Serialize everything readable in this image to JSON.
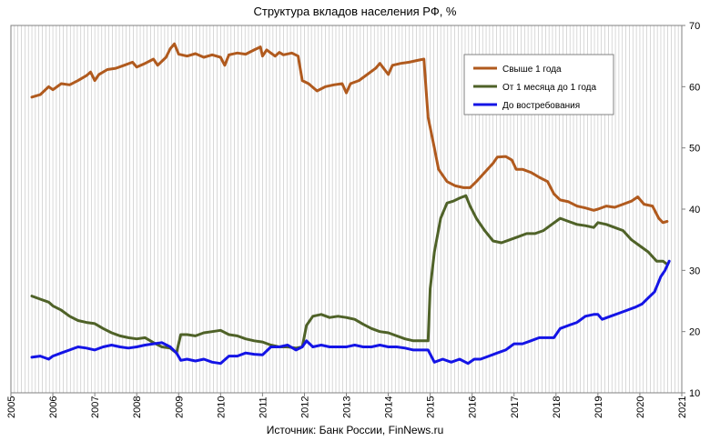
{
  "chart_data": {
    "type": "line",
    "title": "Структура вкладов населения РФ, %",
    "source": "Источник: Банк России, FinNews.ru",
    "xlabel": "",
    "ylabel": "",
    "xlim": [
      2005,
      2021
    ],
    "ylim": [
      10,
      70
    ],
    "y_axis_side": "right",
    "x_ticks": [
      "2005",
      "2006",
      "2007",
      "2008",
      "2009",
      "2010",
      "2011",
      "2012",
      "2013",
      "2014",
      "2015",
      "2016",
      "2017",
      "2018",
      "2019",
      "2020",
      "2021"
    ],
    "y_ticks": [
      "10",
      "20",
      "30",
      "40",
      "50",
      "60",
      "70"
    ],
    "grid": "vertical-monthly",
    "legend_position": "top-right",
    "colors": {
      "over_1_year": "#b05a1e",
      "1_month_to_1_year": "#4f6228",
      "on_demand": "#1414e6",
      "grid": "#bfbfbf",
      "axis": "#808080"
    },
    "series": [
      {
        "key": "over_1_year",
        "name": "Свыше 1 года",
        "color": "#b05a1e",
        "points": [
          [
            2005.5,
            58.3
          ],
          [
            2005.7,
            58.7
          ],
          [
            2005.9,
            60.0
          ],
          [
            2006.0,
            59.5
          ],
          [
            2006.2,
            60.5
          ],
          [
            2006.4,
            60.3
          ],
          [
            2006.6,
            61.0
          ],
          [
            2006.8,
            61.8
          ],
          [
            2006.9,
            62.4
          ],
          [
            2007.0,
            61.0
          ],
          [
            2007.1,
            62.0
          ],
          [
            2007.3,
            62.8
          ],
          [
            2007.5,
            63.0
          ],
          [
            2007.7,
            63.5
          ],
          [
            2007.9,
            64.0
          ],
          [
            2008.0,
            63.2
          ],
          [
            2008.2,
            63.8
          ],
          [
            2008.4,
            64.5
          ],
          [
            2008.5,
            63.5
          ],
          [
            2008.7,
            64.8
          ],
          [
            2008.8,
            66.2
          ],
          [
            2008.9,
            67.0
          ],
          [
            2009.0,
            65.3
          ],
          [
            2009.2,
            65.0
          ],
          [
            2009.4,
            65.4
          ],
          [
            2009.6,
            64.8
          ],
          [
            2009.8,
            65.2
          ],
          [
            2010.0,
            64.8
          ],
          [
            2010.1,
            63.5
          ],
          [
            2010.2,
            65.2
          ],
          [
            2010.4,
            65.5
          ],
          [
            2010.6,
            65.3
          ],
          [
            2010.8,
            66.0
          ],
          [
            2010.95,
            66.5
          ],
          [
            2011.0,
            65.0
          ],
          [
            2011.1,
            66.0
          ],
          [
            2011.2,
            65.5
          ],
          [
            2011.3,
            65.0
          ],
          [
            2011.4,
            65.6
          ],
          [
            2011.5,
            65.2
          ],
          [
            2011.7,
            65.5
          ],
          [
            2011.85,
            65.0
          ],
          [
            2011.95,
            61.0
          ],
          [
            2012.1,
            60.5
          ],
          [
            2012.3,
            59.3
          ],
          [
            2012.5,
            60.0
          ],
          [
            2012.7,
            60.3
          ],
          [
            2012.9,
            60.5
          ],
          [
            2013.0,
            59.0
          ],
          [
            2013.1,
            60.5
          ],
          [
            2013.3,
            61.0
          ],
          [
            2013.5,
            62.0
          ],
          [
            2013.7,
            63.0
          ],
          [
            2013.8,
            63.8
          ],
          [
            2014.0,
            62.0
          ],
          [
            2014.1,
            63.5
          ],
          [
            2014.3,
            63.8
          ],
          [
            2014.5,
            64.0
          ],
          [
            2014.7,
            64.3
          ],
          [
            2014.85,
            64.5
          ],
          [
            2014.95,
            55.0
          ],
          [
            2015.1,
            50.0
          ],
          [
            2015.2,
            46.5
          ],
          [
            2015.4,
            44.5
          ],
          [
            2015.6,
            43.8
          ],
          [
            2015.8,
            43.5
          ],
          [
            2015.95,
            43.5
          ],
          [
            2016.1,
            44.5
          ],
          [
            2016.3,
            46.0
          ],
          [
            2016.5,
            47.5
          ],
          [
            2016.6,
            48.5
          ],
          [
            2016.8,
            48.6
          ],
          [
            2016.95,
            48.0
          ],
          [
            2017.05,
            46.5
          ],
          [
            2017.2,
            46.5
          ],
          [
            2017.4,
            46.0
          ],
          [
            2017.6,
            45.2
          ],
          [
            2017.8,
            44.5
          ],
          [
            2017.95,
            42.5
          ],
          [
            2018.1,
            41.5
          ],
          [
            2018.3,
            41.2
          ],
          [
            2018.5,
            40.5
          ],
          [
            2018.7,
            40.2
          ],
          [
            2018.9,
            39.8
          ],
          [
            2019.0,
            40.0
          ],
          [
            2019.2,
            40.5
          ],
          [
            2019.4,
            40.3
          ],
          [
            2019.6,
            40.8
          ],
          [
            2019.8,
            41.3
          ],
          [
            2019.95,
            42.0
          ],
          [
            2020.1,
            40.8
          ],
          [
            2020.3,
            40.5
          ],
          [
            2020.45,
            38.5
          ],
          [
            2020.55,
            37.8
          ],
          [
            2020.65,
            38.0
          ]
        ]
      },
      {
        "key": "1_month_to_1_year",
        "name": "От 1 месяца до 1 года",
        "color": "#4f6228",
        "points": [
          [
            2005.5,
            25.8
          ],
          [
            2005.7,
            25.3
          ],
          [
            2005.9,
            24.8
          ],
          [
            2006.0,
            24.2
          ],
          [
            2006.2,
            23.5
          ],
          [
            2006.4,
            22.5
          ],
          [
            2006.6,
            21.8
          ],
          [
            2006.8,
            21.5
          ],
          [
            2007.0,
            21.3
          ],
          [
            2007.2,
            20.5
          ],
          [
            2007.4,
            19.8
          ],
          [
            2007.6,
            19.3
          ],
          [
            2007.8,
            19.0
          ],
          [
            2008.0,
            18.8
          ],
          [
            2008.2,
            19.0
          ],
          [
            2008.4,
            18.2
          ],
          [
            2008.6,
            17.5
          ],
          [
            2008.8,
            17.3
          ],
          [
            2008.95,
            16.5
          ],
          [
            2009.05,
            19.5
          ],
          [
            2009.2,
            19.5
          ],
          [
            2009.4,
            19.3
          ],
          [
            2009.6,
            19.8
          ],
          [
            2009.8,
            20.0
          ],
          [
            2010.0,
            20.2
          ],
          [
            2010.2,
            19.5
          ],
          [
            2010.4,
            19.3
          ],
          [
            2010.6,
            18.8
          ],
          [
            2010.8,
            18.5
          ],
          [
            2011.0,
            18.3
          ],
          [
            2011.2,
            17.8
          ],
          [
            2011.4,
            17.5
          ],
          [
            2011.6,
            17.5
          ],
          [
            2011.8,
            17.3
          ],
          [
            2011.95,
            17.5
          ],
          [
            2012.05,
            21.0
          ],
          [
            2012.2,
            22.5
          ],
          [
            2012.4,
            22.8
          ],
          [
            2012.6,
            22.3
          ],
          [
            2012.8,
            22.5
          ],
          [
            2013.0,
            22.3
          ],
          [
            2013.2,
            22.0
          ],
          [
            2013.4,
            21.2
          ],
          [
            2013.6,
            20.5
          ],
          [
            2013.8,
            20.0
          ],
          [
            2014.0,
            19.8
          ],
          [
            2014.2,
            19.3
          ],
          [
            2014.4,
            18.8
          ],
          [
            2014.6,
            18.5
          ],
          [
            2014.8,
            18.5
          ],
          [
            2014.95,
            18.5
          ],
          [
            2015.0,
            27.0
          ],
          [
            2015.1,
            33.0
          ],
          [
            2015.25,
            38.5
          ],
          [
            2015.4,
            41.0
          ],
          [
            2015.55,
            41.3
          ],
          [
            2015.7,
            41.8
          ],
          [
            2015.85,
            42.2
          ],
          [
            2015.95,
            40.5
          ],
          [
            2016.1,
            38.5
          ],
          [
            2016.3,
            36.5
          ],
          [
            2016.5,
            34.8
          ],
          [
            2016.7,
            34.5
          ],
          [
            2016.9,
            35.0
          ],
          [
            2017.1,
            35.5
          ],
          [
            2017.3,
            36.0
          ],
          [
            2017.5,
            36.0
          ],
          [
            2017.7,
            36.5
          ],
          [
            2017.9,
            37.5
          ],
          [
            2018.1,
            38.5
          ],
          [
            2018.3,
            38.0
          ],
          [
            2018.5,
            37.5
          ],
          [
            2018.7,
            37.3
          ],
          [
            2018.9,
            37.0
          ],
          [
            2019.0,
            37.8
          ],
          [
            2019.2,
            37.5
          ],
          [
            2019.4,
            37.0
          ],
          [
            2019.6,
            36.5
          ],
          [
            2019.8,
            35.0
          ],
          [
            2020.0,
            34.0
          ],
          [
            2020.2,
            33.0
          ],
          [
            2020.4,
            31.5
          ],
          [
            2020.55,
            31.5
          ],
          [
            2020.65,
            31.0
          ]
        ]
      },
      {
        "key": "on_demand",
        "name": "До востребования",
        "color": "#1414e6",
        "points": [
          [
            2005.5,
            15.8
          ],
          [
            2005.7,
            16.0
          ],
          [
            2005.9,
            15.5
          ],
          [
            2006.0,
            16.0
          ],
          [
            2006.2,
            16.5
          ],
          [
            2006.4,
            17.0
          ],
          [
            2006.6,
            17.5
          ],
          [
            2006.8,
            17.3
          ],
          [
            2007.0,
            17.0
          ],
          [
            2007.2,
            17.5
          ],
          [
            2007.4,
            17.8
          ],
          [
            2007.6,
            17.5
          ],
          [
            2007.8,
            17.3
          ],
          [
            2008.0,
            17.5
          ],
          [
            2008.2,
            17.8
          ],
          [
            2008.4,
            18.0
          ],
          [
            2008.6,
            18.2
          ],
          [
            2008.8,
            17.5
          ],
          [
            2008.95,
            16.5
          ],
          [
            2009.05,
            15.3
          ],
          [
            2009.2,
            15.5
          ],
          [
            2009.4,
            15.2
          ],
          [
            2009.6,
            15.5
          ],
          [
            2009.8,
            15.0
          ],
          [
            2010.0,
            14.8
          ],
          [
            2010.2,
            16.0
          ],
          [
            2010.4,
            16.0
          ],
          [
            2010.6,
            16.5
          ],
          [
            2010.8,
            16.3
          ],
          [
            2011.0,
            16.2
          ],
          [
            2011.2,
            17.5
          ],
          [
            2011.4,
            17.5
          ],
          [
            2011.6,
            17.8
          ],
          [
            2011.8,
            17.0
          ],
          [
            2011.95,
            17.5
          ],
          [
            2012.05,
            18.5
          ],
          [
            2012.2,
            17.5
          ],
          [
            2012.4,
            17.8
          ],
          [
            2012.6,
            17.5
          ],
          [
            2012.8,
            17.5
          ],
          [
            2013.0,
            17.5
          ],
          [
            2013.2,
            17.8
          ],
          [
            2013.4,
            17.5
          ],
          [
            2013.6,
            17.5
          ],
          [
            2013.8,
            17.8
          ],
          [
            2014.0,
            17.5
          ],
          [
            2014.2,
            17.5
          ],
          [
            2014.4,
            17.3
          ],
          [
            2014.6,
            17.0
          ],
          [
            2014.8,
            17.0
          ],
          [
            2014.95,
            17.0
          ],
          [
            2015.1,
            15.0
          ],
          [
            2015.3,
            15.5
          ],
          [
            2015.5,
            15.0
          ],
          [
            2015.7,
            15.5
          ],
          [
            2015.9,
            14.8
          ],
          [
            2016.05,
            15.5
          ],
          [
            2016.2,
            15.5
          ],
          [
            2016.4,
            16.0
          ],
          [
            2016.6,
            16.5
          ],
          [
            2016.8,
            17.0
          ],
          [
            2017.0,
            18.0
          ],
          [
            2017.2,
            18.0
          ],
          [
            2017.4,
            18.5
          ],
          [
            2017.6,
            19.0
          ],
          [
            2017.8,
            19.0
          ],
          [
            2017.95,
            19.0
          ],
          [
            2018.1,
            20.5
          ],
          [
            2018.3,
            21.0
          ],
          [
            2018.5,
            21.5
          ],
          [
            2018.7,
            22.5
          ],
          [
            2018.9,
            22.8
          ],
          [
            2019.0,
            22.8
          ],
          [
            2019.1,
            22.0
          ],
          [
            2019.3,
            22.5
          ],
          [
            2019.5,
            23.0
          ],
          [
            2019.7,
            23.5
          ],
          [
            2019.9,
            24.0
          ],
          [
            2020.05,
            24.5
          ],
          [
            2020.2,
            25.5
          ],
          [
            2020.35,
            26.5
          ],
          [
            2020.5,
            29.0
          ],
          [
            2020.6,
            30.0
          ],
          [
            2020.7,
            31.5
          ]
        ]
      }
    ]
  }
}
